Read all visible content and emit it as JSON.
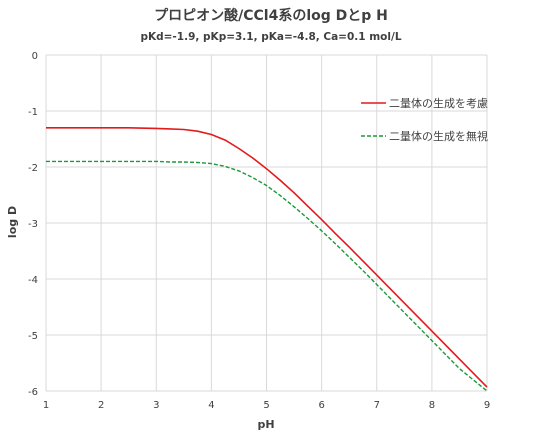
{
  "chart_data": {
    "type": "line",
    "title": "プロピオン酸/CCl4系のlog Dとp H",
    "subtitle": "pKd=-1.9, pKp=3.1, pKa=-4.8, Ca=0.1 mol/L",
    "xlabel": "pH",
    "ylabel": "log D",
    "xlim": [
      1,
      9
    ],
    "ylim": [
      -6,
      0
    ],
    "x_ticks": [
      1,
      2,
      3,
      4,
      5,
      6,
      7,
      8,
      9
    ],
    "y_ticks": [
      0,
      -1,
      -2,
      -3,
      -4,
      -5,
      -6
    ],
    "grid": true,
    "legend_position": "right",
    "x": [
      1,
      1.5,
      2,
      2.5,
      3,
      3.25,
      3.5,
      3.75,
      4,
      4.25,
      4.5,
      4.75,
      5,
      5.25,
      5.5,
      5.75,
      6,
      6.25,
      6.5,
      6.75,
      7,
      7.5,
      8,
      8.5,
      9
    ],
    "series": [
      {
        "name": "二量体の生成を考慮",
        "color": "#e31a1c",
        "dash": "solid",
        "values": [
          -1.3,
          -1.3,
          -1.3,
          -1.3,
          -1.31,
          -1.32,
          -1.33,
          -1.36,
          -1.42,
          -1.52,
          -1.67,
          -1.84,
          -2.03,
          -2.24,
          -2.46,
          -2.7,
          -2.94,
          -3.19,
          -3.43,
          -3.68,
          -3.93,
          -4.43,
          -4.93,
          -5.43,
          -5.93
        ]
      },
      {
        "name": "二量体の生成を無視",
        "color": "#1a9a3a",
        "dash": "dashed",
        "values": [
          -1.9,
          -1.9,
          -1.9,
          -1.9,
          -1.9,
          -1.91,
          -1.91,
          -1.92,
          -1.94,
          -1.99,
          -2.07,
          -2.19,
          -2.33,
          -2.51,
          -2.71,
          -2.92,
          -3.14,
          -3.37,
          -3.61,
          -3.85,
          -4.1,
          -4.6,
          -5.1,
          -5.6,
          -6.0
        ]
      }
    ]
  }
}
